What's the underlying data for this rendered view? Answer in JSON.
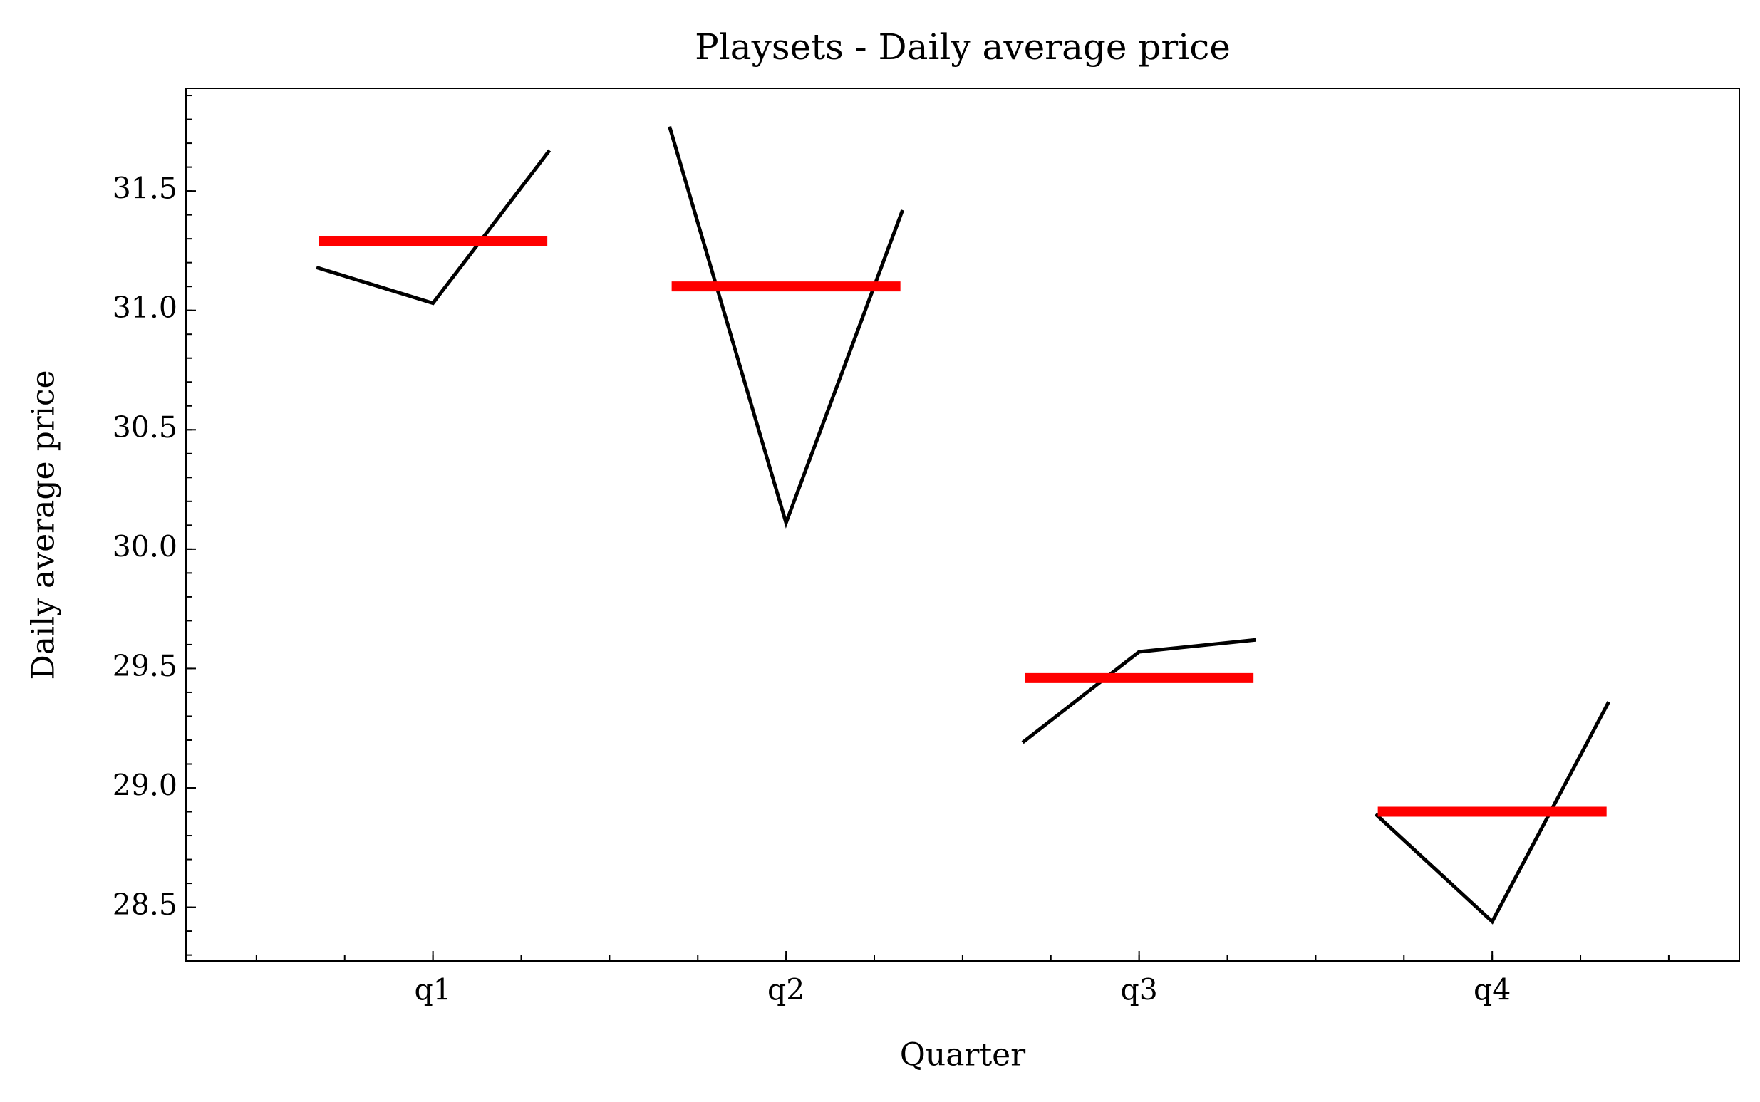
{
  "chart_data": {
    "type": "line",
    "title": "Playsets - Daily average price",
    "x_label": "Quarter",
    "y_label": "Daily average price",
    "categories": [
      "q1",
      "q2",
      "q3",
      "q4"
    ],
    "values": [
      [
        31.18,
        31.03,
        31.67
      ],
      [
        31.77,
        30.11,
        31.42
      ],
      [
        29.19,
        29.57,
        29.62
      ],
      [
        28.89,
        28.44,
        29.36
      ]
    ],
    "means": [
      31.29,
      31.1,
      29.46,
      28.9
    ],
    "line_color": "#000000",
    "mean_color": "#ff0000",
    "ylim": [
      28.275,
      31.93
    ],
    "yticks": [
      {
        "value": 28.5,
        "label": "28.5"
      },
      {
        "value": 29,
        "label": "29.0"
      },
      {
        "value": 29.5,
        "label": "29.5"
      },
      {
        "value": 30,
        "label": "30.0"
      },
      {
        "value": 30.5,
        "label": "30.5"
      },
      {
        "value": 31,
        "label": "31.0"
      },
      {
        "value": 31.5,
        "label": "31.5"
      }
    ]
  }
}
